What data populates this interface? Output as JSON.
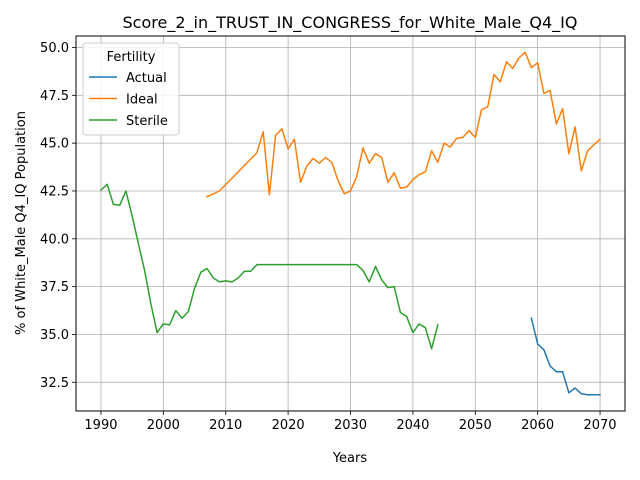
{
  "chart_data": {
    "type": "line",
    "title": "Score_2_in_TRUST_IN_CONGRESS_for_White_Male_Q4_IQ",
    "xlabel": "Years",
    "ylabel": "% of White_Male Q4_IQ Population",
    "xlim": [
      1986,
      2074
    ],
    "ylim": [
      31.0,
      50.6
    ],
    "xticks": [
      1990,
      2000,
      2010,
      2020,
      2030,
      2040,
      2050,
      2060,
      2070
    ],
    "yticks": [
      32.5,
      35.0,
      37.5,
      40.0,
      42.5,
      45.0,
      47.5,
      50.0
    ],
    "xtick_labels": [
      "1990",
      "2000",
      "2010",
      "2020",
      "2030",
      "2040",
      "2050",
      "2060",
      "2070"
    ],
    "ytick_labels": [
      "32.5",
      "35.0",
      "37.5",
      "40.0",
      "42.5",
      "45.0",
      "47.5",
      "50.0"
    ],
    "grid": true,
    "legend": {
      "title": "Fertility",
      "position": "upper left"
    },
    "series": [
      {
        "name": "Actual",
        "color": "#1f77b4",
        "x": [
          2059,
          2060,
          2061,
          2062,
          2063,
          2064,
          2065,
          2066,
          2067,
          2068,
          2069,
          2070
        ],
        "y": [
          35.85,
          34.5,
          34.2,
          33.35,
          33.05,
          33.05,
          31.95,
          32.2,
          31.9,
          31.85,
          31.85,
          31.85
        ]
      },
      {
        "name": "Ideal",
        "color": "#ff7f0e",
        "x": [
          2007,
          2009,
          2015,
          2016,
          2017,
          2018,
          2019,
          2020,
          2021,
          2022,
          2023,
          2024,
          2025,
          2026,
          2027,
          2028,
          2029,
          2030,
          2031,
          2032,
          2033,
          2034,
          2035,
          2036,
          2037,
          2038,
          2039,
          2040,
          2041,
          2042,
          2043,
          2044,
          2045,
          2046,
          2047,
          2048,
          2049,
          2050,
          2051,
          2052,
          2053,
          2054,
          2055,
          2056,
          2057,
          2058,
          2059,
          2060,
          2061,
          2062,
          2063,
          2064,
          2065,
          2066,
          2067,
          2068,
          2069,
          2070
        ],
        "y": [
          42.2,
          42.5,
          44.5,
          45.6,
          42.3,
          45.4,
          45.75,
          44.7,
          45.2,
          42.95,
          43.8,
          44.2,
          43.95,
          44.25,
          44.0,
          43.05,
          42.35,
          42.5,
          43.25,
          44.75,
          43.95,
          44.45,
          44.25,
          42.95,
          43.45,
          42.65,
          42.7,
          43.1,
          43.35,
          43.5,
          44.6,
          44.0,
          45.0,
          44.8,
          45.25,
          45.3,
          45.65,
          45.3,
          46.75,
          46.9,
          48.6,
          48.2,
          49.25,
          48.9,
          49.45,
          49.75,
          48.95,
          49.2,
          47.6,
          47.75,
          46.0,
          46.8,
          44.45,
          45.85,
          43.55,
          44.6,
          44.9,
          45.2
        ]
      },
      {
        "name": "Sterile",
        "color": "#2ca02c",
        "x": [
          1990,
          1991,
          1992,
          1993,
          1994,
          1995,
          1996,
          1997,
          1998,
          1999,
          2000,
          2001,
          2002,
          2003,
          2004,
          2005,
          2006,
          2007,
          2008,
          2009,
          2010,
          2011,
          2012,
          2013,
          2014,
          2015,
          2016,
          2017,
          2018,
          2019,
          2020,
          2021,
          2022,
          2023,
          2024,
          2025,
          2026,
          2027,
          2028,
          2029,
          2030,
          2031,
          2032,
          2033,
          2034,
          2035,
          2036,
          2037,
          2038,
          2039,
          2040,
          2041,
          2042,
          2043,
          2044
        ],
        "y": [
          42.55,
          42.85,
          41.8,
          41.75,
          42.5,
          41.2,
          39.75,
          38.35,
          36.6,
          35.1,
          35.55,
          35.5,
          36.25,
          35.85,
          36.2,
          37.4,
          38.25,
          38.45,
          37.95,
          37.75,
          37.8,
          37.75,
          37.95,
          38.3,
          38.3,
          38.65,
          38.65,
          38.65,
          38.65,
          38.65,
          38.65,
          38.65,
          38.65,
          38.65,
          38.65,
          38.65,
          38.65,
          38.65,
          38.65,
          38.65,
          38.65,
          38.65,
          38.35,
          37.75,
          38.55,
          37.85,
          37.45,
          37.5,
          36.15,
          35.95,
          35.1,
          35.55,
          35.35,
          34.25,
          35.5
        ]
      }
    ]
  }
}
